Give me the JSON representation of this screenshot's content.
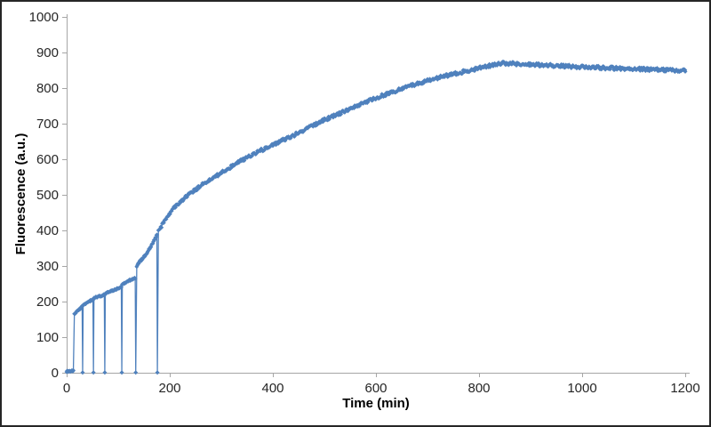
{
  "figure": {
    "background": "#FFFFFF",
    "border_color": "#262626",
    "axis_color": "#A6A6A6",
    "label_color": "#262626",
    "series_color": "#4F81BD"
  },
  "chart_data": {
    "type": "scatter",
    "title": "",
    "xlabel": "Time (min)",
    "ylabel": "Fluorescence (a.u.)",
    "xlim": [
      0,
      1200
    ],
    "ylim": [
      0,
      1000
    ],
    "xticks": [
      0,
      200,
      400,
      600,
      800,
      1000,
      1200
    ],
    "yticks": [
      0,
      100,
      200,
      300,
      400,
      500,
      600,
      700,
      800,
      900,
      1000
    ],
    "grid": false,
    "legend": "none",
    "marker": "diamond",
    "marker_size_px": 5,
    "sample_interval_min": 1.4,
    "noise_seed_scale": 12.9898,
    "description": "Fluorescence time course with stepwise additions; signal drops to zero momentarily at each addition (t≈31,52,74,107,134,176 min), then rises smoothly to a maximum of ~870 a.u. near t≈840 min and slowly declines to ~850 by t=1200 min.",
    "segments": [
      {
        "name": "baseline",
        "noise": 1.5,
        "dt": 1.0,
        "anchors": [
          [
            0,
            4
          ],
          [
            13,
            5
          ]
        ]
      },
      {
        "name": "step-1",
        "noise": 2.0,
        "dt": 1.2,
        "anchors": [
          [
            15,
            166
          ],
          [
            19,
            171
          ],
          [
            25,
            179
          ],
          [
            30,
            186
          ]
        ],
        "zero_after": 31
      },
      {
        "name": "step-2",
        "noise": 2.0,
        "dt": 1.2,
        "anchors": [
          [
            32,
            190
          ],
          [
            40,
            198
          ],
          [
            51,
            206
          ]
        ],
        "zero_after": 52
      },
      {
        "name": "step-3",
        "noise": 2.0,
        "dt": 1.2,
        "anchors": [
          [
            53,
            210
          ],
          [
            63,
            215
          ],
          [
            73,
            219
          ]
        ],
        "zero_after": 74
      },
      {
        "name": "step-4",
        "noise": 2.0,
        "dt": 1.2,
        "anchors": [
          [
            75,
            222
          ],
          [
            88,
            231
          ],
          [
            100,
            237
          ],
          [
            106,
            241
          ]
        ],
        "zero_after": 107
      },
      {
        "name": "step-5",
        "noise": 2.0,
        "dt": 1.2,
        "anchors": [
          [
            108,
            248
          ],
          [
            118,
            257
          ],
          [
            126,
            262
          ],
          [
            133,
            266
          ]
        ],
        "zero_after": 134
      },
      {
        "name": "step-6",
        "noise": 2.5,
        "dt": 1.2,
        "anchors": [
          [
            136,
            300
          ],
          [
            141,
            312
          ],
          [
            147,
            320
          ],
          [
            154,
            333
          ],
          [
            162,
            351
          ],
          [
            169,
            369
          ],
          [
            175,
            387
          ]
        ],
        "zero_after": 176
      },
      {
        "name": "main-curve",
        "noise": 4.5,
        "dt": 1.5,
        "anchors": [
          [
            178,
            396
          ],
          [
            186,
            418
          ],
          [
            195,
            440
          ],
          [
            205,
            458
          ],
          [
            220,
            480
          ],
          [
            240,
            504
          ],
          [
            260,
            525
          ],
          [
            280,
            544
          ],
          [
            300,
            562
          ],
          [
            320,
            580
          ],
          [
            340,
            597
          ],
          [
            360,
            612
          ],
          [
            380,
            627
          ],
          [
            400,
            641
          ],
          [
            420,
            654
          ],
          [
            440,
            667
          ],
          [
            460,
            681
          ],
          [
            480,
            696
          ],
          [
            500,
            710
          ],
          [
            520,
            723
          ],
          [
            540,
            735
          ],
          [
            560,
            748
          ],
          [
            580,
            760
          ],
          [
            600,
            772
          ],
          [
            620,
            783
          ],
          [
            640,
            793
          ],
          [
            660,
            803
          ],
          [
            680,
            812
          ],
          [
            700,
            821
          ],
          [
            720,
            829
          ],
          [
            740,
            836
          ],
          [
            760,
            843
          ],
          [
            780,
            849
          ],
          [
            800,
            856
          ],
          [
            815,
            861
          ],
          [
            830,
            866
          ],
          [
            845,
            870
          ],
          [
            860,
            869
          ],
          [
            880,
            867
          ],
          [
            900,
            866
          ],
          [
            930,
            864
          ],
          [
            960,
            862
          ],
          [
            1000,
            859
          ],
          [
            1040,
            857
          ],
          [
            1080,
            855
          ],
          [
            1120,
            853
          ],
          [
            1160,
            851
          ],
          [
            1200,
            849
          ]
        ]
      }
    ]
  }
}
